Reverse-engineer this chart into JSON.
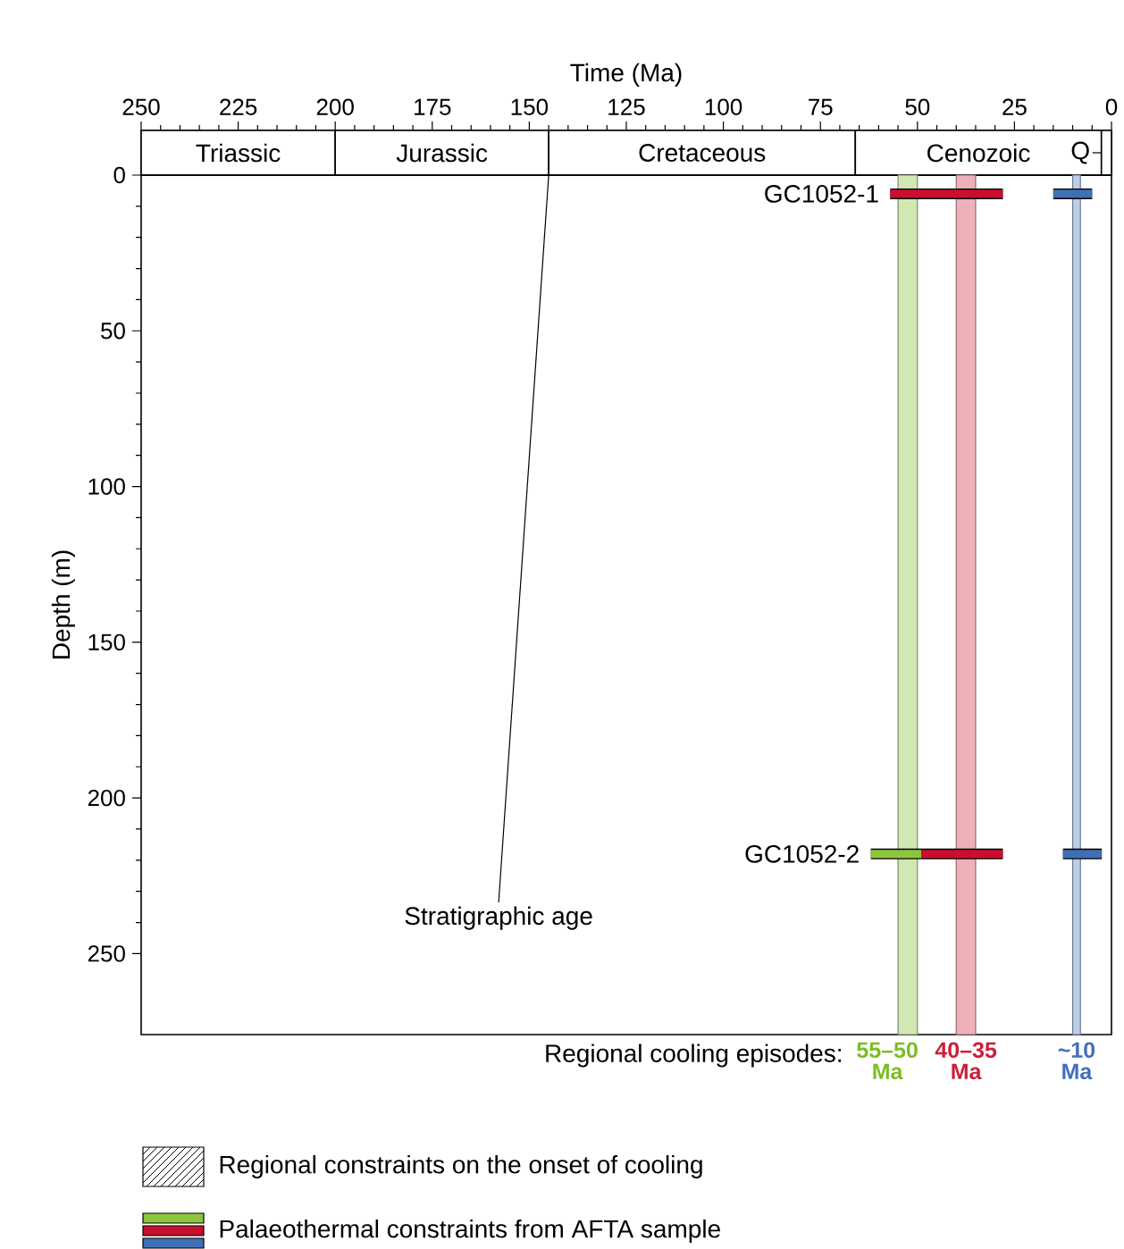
{
  "chart_data": [
    {
      "type": "bar",
      "orientation": "horizontal",
      "stacked": true,
      "xlabel": "Time (Ma)",
      "categories": [
        null
      ],
      "xlim": [
        250,
        0
      ],
      "xticks": [
        250,
        225,
        200,
        175,
        150,
        125,
        100,
        75,
        50,
        25,
        0
      ],
      "tick_labels": "x",
      "series": [
        {
          "name": "Q",
          "color": "#ffffff",
          "values": [
            2.6
          ]
        },
        {
          "name": "Cenozoic",
          "color": "#ffffff",
          "values": [
            63.4
          ]
        },
        {
          "name": "Cretaceous",
          "color": "#ffffff",
          "values": [
            79
          ]
        },
        {
          "name": "Jurassic",
          "color": "#ffffff",
          "values": [
            55
          ]
        },
        {
          "name": "Triassic",
          "color": "#ffffff",
          "values": [
            50
          ]
        }
      ],
      "annotations": [
        {
          "text": "Stratigraphic age",
          "x": 145
        }
      ]
    },
    {
      "type": "line",
      "ylabel": "Depth (m)",
      "xlim": [
        250,
        0
      ],
      "ylim": [
        276,
        0
      ],
      "yticks": [
        0,
        50,
        100,
        150,
        200,
        250
      ],
      "tick_labels": "y",
      "line_style": "solid",
      "series": [
        {
          "color": "#8cc63f",
          "x": [
            62,
            49
          ],
          "values": [
            218,
            218
          ]
        },
        {
          "color": "#c8102e",
          "x": [
            57,
            28
          ],
          "values": [
            6,
            6
          ]
        },
        {
          "color": "#c8102e",
          "x": [
            49,
            28
          ],
          "values": [
            218,
            218
          ]
        },
        {
          "color": "#3f6fb5",
          "x": [
            15,
            5
          ],
          "values": [
            6,
            6
          ]
        },
        {
          "color": "#3f6fb5",
          "x": [
            12.5,
            2.5
          ],
          "values": [
            218,
            218
          ]
        }
      ],
      "bands": [
        {
          "axis": "x",
          "from": 55,
          "to": 50,
          "label": "55–50 Ma",
          "color": "#d1e8b2"
        },
        {
          "axis": "x",
          "from": 40,
          "to": 35,
          "label": "40–35 Ma",
          "color": "#eeb0b9"
        },
        {
          "axis": "x",
          "from": 10,
          "to": 8,
          "label": "~10 Ma",
          "color": "#bccde8"
        }
      ],
      "annotations": [
        {
          "text": "GC1052-1",
          "x": 57,
          "y": 6
        },
        {
          "text": "GC1052-2",
          "x": 62,
          "y": 218
        },
        "Regional cooling episodes:",
        "Regional constraints on the onset of cooling",
        "Palaeothermal constraints from AFTA sample"
      ]
    }
  ]
}
